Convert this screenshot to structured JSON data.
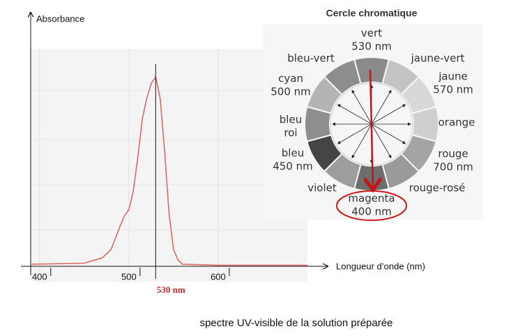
{
  "chart_data": {
    "type": "line",
    "y_label": "Absorbance",
    "x_label": "Longueur d’onde (nm)",
    "x": [
      390,
      420,
      450,
      470,
      480,
      490,
      495,
      500,
      505,
      510,
      515,
      520,
      525,
      530,
      535,
      540,
      545,
      550,
      555,
      560,
      600,
      700
    ],
    "series": [
      {
        "color": "#e06060",
        "values": [
          0.01,
          0.012,
          0.015,
          0.04,
          0.08,
          0.19,
          0.24,
          0.27,
          0.36,
          0.52,
          0.7,
          0.8,
          0.87,
          0.9,
          0.8,
          0.55,
          0.25,
          0.08,
          0.03,
          0.01,
          0.005,
          0.005
        ]
      }
    ],
    "xlim": [
      390,
      700
    ],
    "xticks": [
      400,
      500,
      600
    ],
    "ylim": [
      0,
      1.2
    ],
    "grid": true,
    "annotations": [
      {
        "x": 530,
        "label": "530 nm",
        "color": "#c0282a"
      }
    ],
    "caption": "spectre UV-visible de la solution préparée"
  },
  "color_wheel": {
    "title": "Cercle chromatique",
    "colors": [
      [
        "vert",
        "530 nm"
      ],
      [
        "jaune-vert"
      ],
      [
        "jaune",
        "570 nm"
      ],
      [
        "orange"
      ],
      [
        "rouge",
        "700 nm"
      ],
      [
        "rouge-rosé"
      ],
      [
        "magenta",
        "400 nm"
      ],
      [
        "violet"
      ],
      [
        "bleu",
        "450 nm"
      ],
      [
        "bleu",
        "roi"
      ],
      [
        "cyan",
        "500 nm"
      ],
      [
        "bleu-vert"
      ]
    ]
  }
}
